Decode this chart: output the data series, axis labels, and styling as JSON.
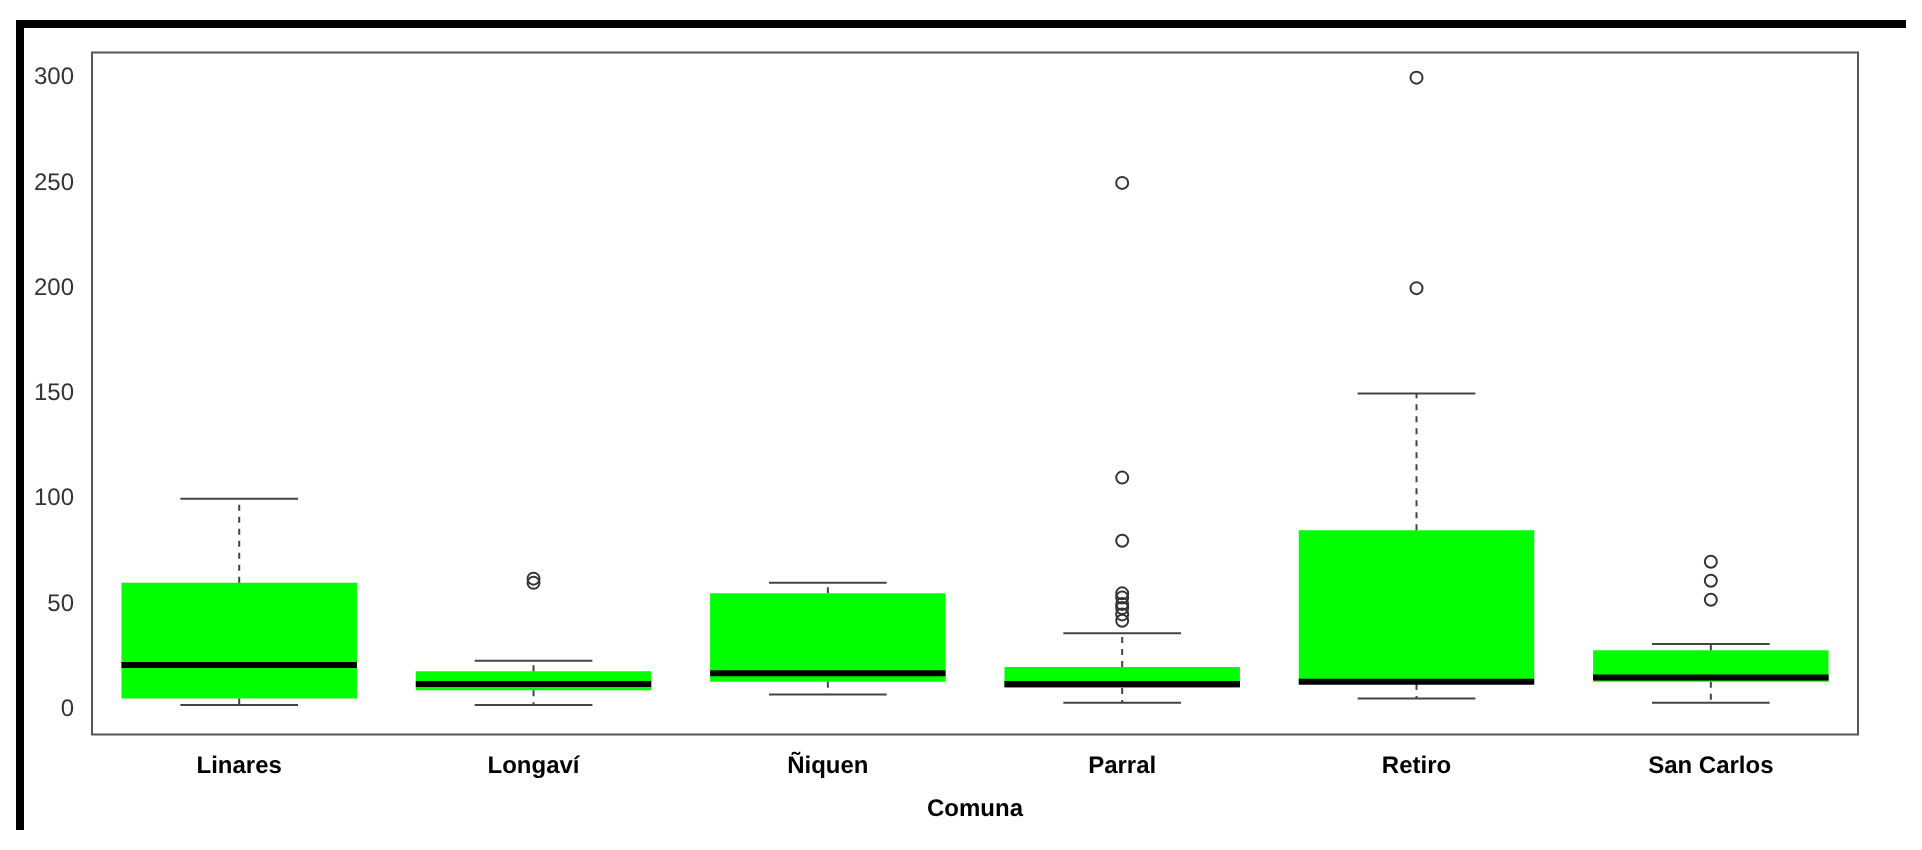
{
  "chart_data": {
    "type": "box",
    "xlabel": "Comuna",
    "categories": [
      "Linares",
      "Longaví",
      "Ñiquen",
      "Parral",
      "Retiro",
      "San Carlos"
    ],
    "color": "#00ff00",
    "ylim": [
      -12,
      312
    ],
    "yticks": [
      0,
      50,
      100,
      150,
      200,
      250,
      300
    ],
    "grid": false,
    "legend": false,
    "boxes": [
      {
        "low": 2,
        "q1": 5,
        "median": 21,
        "q3": 60,
        "high": 100
      },
      {
        "low": 2,
        "q1": 9,
        "median": 12,
        "q3": 18,
        "high": 23,
        "outliers": [
          60,
          62
        ]
      },
      {
        "low": 7,
        "q1": 13,
        "median": 17,
        "q3": 55,
        "high": 60
      },
      {
        "low": 3,
        "q1": 10,
        "median": 12,
        "q3": 20,
        "high": 36,
        "outliers": [
          42,
          45,
          48,
          50,
          53,
          55,
          80,
          110,
          250
        ]
      },
      {
        "low": 5,
        "q1": 12,
        "median": 13,
        "q3": 85,
        "high": 150,
        "outliers": [
          200,
          300
        ]
      },
      {
        "low": 3,
        "q1": 13,
        "median": 15,
        "q3": 28,
        "high": 31,
        "outliers": [
          52,
          61,
          70
        ]
      }
    ]
  }
}
